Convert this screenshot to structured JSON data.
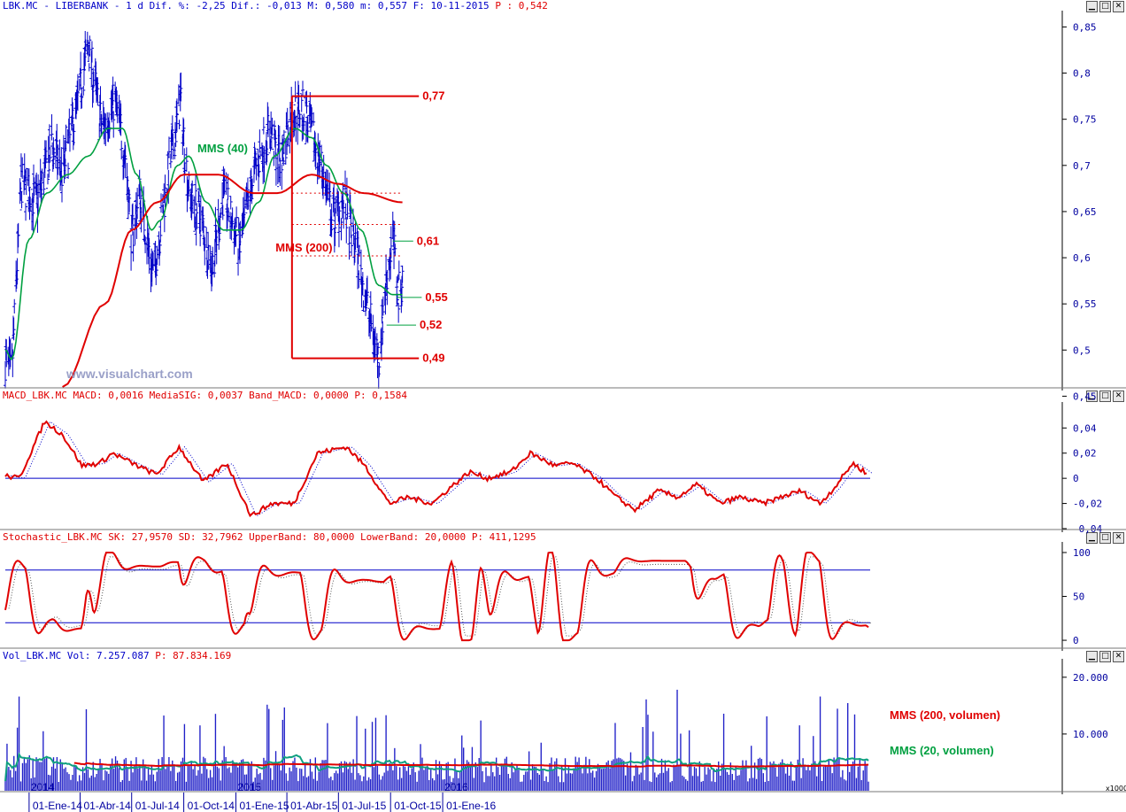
{
  "header": {
    "main": "LBK.MC - LIBERBANK -  1 d Dif. %: -2,25 Dif.: -0,013 M: 0,580 m: 0,557 F: 10-11-2015",
    "main_price": "P : 0,542",
    "macd_label": "MACD_LBK.MC MACD: 0,0016 MediaSIG: 0,0037 Band_MACD: 0,0000",
    "macd_p": "P: 0,1584",
    "stoch_label": "Stochastic_LBK.MC SK: 27,9570 SD: 32,7962 UpperBand: 80,0000 LowerBand: 20,0000",
    "stoch_p": "P: 411,1295",
    "vol_label": "Vol_LBK.MC Vol: 7.257.087",
    "vol_p": "P: 87.834.169"
  },
  "watermark": "www.visualchart.com",
  "window_buttons": [
    "▁",
    "□",
    "✕"
  ],
  "colors": {
    "price": "#0000c8",
    "mms40": "#00a040",
    "mms200": "#e00000",
    "frame": "#0000c8",
    "axis": "#000000"
  },
  "chart_data": [
    {
      "type": "candlestick",
      "title": "",
      "ylim": [
        0.46,
        0.86
      ],
      "yticks": [
        {
          "v": 0.85,
          "t": "0,85"
        },
        {
          "v": 0.8,
          "t": "0,8"
        },
        {
          "v": 0.75,
          "t": "0,75"
        },
        {
          "v": 0.7,
          "t": "0,7"
        },
        {
          "v": 0.65,
          "t": "0,65"
        },
        {
          "v": 0.6,
          "t": "0,6"
        },
        {
          "v": 0.55,
          "t": "0,55"
        },
        {
          "v": 0.5,
          "t": "0,5"
        },
        {
          "v": 0.45,
          "t": "0,45"
        }
      ],
      "close_keypoints": [
        [
          "2013-11-20",
          0.49
        ],
        [
          "2013-12-01",
          0.47
        ],
        [
          "2013-12-18",
          0.68
        ],
        [
          "2014-01-15",
          0.66
        ],
        [
          "2014-02-10",
          0.72
        ],
        [
          "2014-03-01",
          0.69
        ],
        [
          "2014-04-01",
          0.78
        ],
        [
          "2014-04-15",
          0.83
        ],
        [
          "2014-05-10",
          0.74
        ],
        [
          "2014-06-01",
          0.77
        ],
        [
          "2014-06-20",
          0.71
        ],
        [
          "2014-07-01",
          0.62
        ],
        [
          "2014-07-15",
          0.67
        ],
        [
          "2014-08-08",
          0.58
        ],
        [
          "2014-09-01",
          0.68
        ],
        [
          "2014-09-25",
          0.77
        ],
        [
          "2014-10-10",
          0.67
        ],
        [
          "2014-11-01",
          0.64
        ],
        [
          "2014-11-20",
          0.59
        ],
        [
          "2014-12-10",
          0.67
        ],
        [
          "2015-01-08",
          0.61
        ],
        [
          "2015-02-01",
          0.69
        ],
        [
          "2015-03-01",
          0.74
        ],
        [
          "2015-03-20",
          0.7
        ],
        [
          "2015-04-10",
          0.76
        ],
        [
          "2015-05-01",
          0.76
        ],
        [
          "2015-06-01",
          0.7
        ],
        [
          "2015-06-20",
          0.64
        ],
        [
          "2015-07-10",
          0.66
        ],
        [
          "2015-08-01",
          0.61
        ],
        [
          "2015-08-20",
          0.55
        ],
        [
          "2015-09-10",
          0.49
        ],
        [
          "2015-09-24",
          0.58
        ],
        [
          "2015-10-05",
          0.62
        ],
        [
          "2015-10-15",
          0.56
        ],
        [
          "2015-10-22",
          0.58
        ]
      ],
      "mms40_keypoints": [
        [
          "2013-11-20",
          0.5
        ],
        [
          "2013-12-01",
          0.49
        ],
        [
          "2014-01-01",
          0.62
        ],
        [
          "2014-02-01",
          0.67
        ],
        [
          "2014-03-10",
          0.69
        ],
        [
          "2014-04-15",
          0.71
        ],
        [
          "2014-05-20",
          0.74
        ],
        [
          "2014-06-15",
          0.74
        ],
        [
          "2014-07-10",
          0.69
        ],
        [
          "2014-08-05",
          0.63
        ],
        [
          "2014-08-20",
          0.64
        ],
        [
          "2014-09-20",
          0.7
        ],
        [
          "2014-10-10",
          0.71
        ],
        [
          "2014-11-10",
          0.66
        ],
        [
          "2014-12-10",
          0.63
        ],
        [
          "2015-01-10",
          0.63
        ],
        [
          "2015-02-10",
          0.66
        ],
        [
          "2015-03-10",
          0.71
        ],
        [
          "2015-04-15",
          0.74
        ],
        [
          "2015-05-15",
          0.73
        ],
        [
          "2015-06-10",
          0.7
        ],
        [
          "2015-07-10",
          0.67
        ],
        [
          "2015-08-10",
          0.63
        ],
        [
          "2015-09-10",
          0.57
        ],
        [
          "2015-10-05",
          0.56
        ],
        [
          "2015-10-22",
          0.56
        ]
      ],
      "mms200_keypoints": [
        [
          "2014-03-01",
          0.46
        ],
        [
          "2014-05-15",
          0.55
        ],
        [
          "2014-07-01",
          0.63
        ],
        [
          "2014-08-15",
          0.66
        ],
        [
          "2014-10-01",
          0.69
        ],
        [
          "2014-12-01",
          0.69
        ],
        [
          "2015-02-01",
          0.67
        ],
        [
          "2015-03-15",
          0.67
        ],
        [
          "2015-05-15",
          0.69
        ],
        [
          "2015-07-01",
          0.68
        ],
        [
          "2015-08-15",
          0.67
        ],
        [
          "2015-10-22",
          0.66
        ]
      ],
      "annotations": [
        {
          "text": "MMS (40)",
          "date": "2014-10-25",
          "value": 0.714,
          "color": "green"
        },
        {
          "text": "MMS (200)",
          "date": "2015-03-12",
          "value": 0.607,
          "color": "red"
        }
      ],
      "levels": [
        {
          "text": "0,77",
          "value": 0.775,
          "from": "2015-04-10",
          "to": "2015-11-20",
          "style": "solid",
          "color": "red"
        },
        {
          "text": "0,49",
          "value": 0.491,
          "from": "2015-04-10",
          "to": "2015-11-20",
          "style": "solid",
          "color": "red"
        },
        {
          "text": "0,61",
          "value": 0.618,
          "from": "2015-10-05",
          "to": "2015-11-10",
          "style": "solid",
          "color": "green"
        },
        {
          "text": "0,55",
          "value": 0.557,
          "from": "2015-10-12",
          "to": "2015-11-25",
          "style": "solid",
          "color": "green"
        },
        {
          "text": "0,52",
          "value": 0.527,
          "from": "2015-09-24",
          "to": "2015-11-15",
          "style": "solid",
          "color": "green"
        },
        {
          "value": 0.67,
          "from": "2015-04-10",
          "to": "2015-10-22",
          "style": "dotted",
          "color": "red"
        },
        {
          "value": 0.636,
          "from": "2015-04-10",
          "to": "2015-10-22",
          "style": "dotted",
          "color": "red"
        },
        {
          "value": 0.602,
          "from": "2015-04-10",
          "to": "2015-10-22",
          "style": "dotted",
          "color": "red"
        }
      ]
    },
    {
      "type": "line",
      "title": "",
      "ylim": [
        -0.04,
        0.055
      ],
      "yticks": [
        {
          "v": 0.04,
          "t": "0,04"
        },
        {
          "v": 0.02,
          "t": "0,02"
        },
        {
          "v": 0,
          "t": "0"
        },
        {
          "v": -0.02,
          "t": "-0,02"
        },
        {
          "v": -0.04,
          "t": "-0,04"
        }
      ],
      "zero_line": 0,
      "macd_keypoints": [
        [
          "2013-11-20",
          0.002
        ],
        [
          "2013-12-05",
          0.0
        ],
        [
          "2014-01-01",
          0.045
        ],
        [
          "2014-01-20",
          0.035
        ],
        [
          "2014-02-10",
          0.01
        ],
        [
          "2014-03-01",
          0.012
        ],
        [
          "2014-03-15",
          0.02
        ],
        [
          "2014-04-10",
          0.01
        ],
        [
          "2014-05-01",
          0.003
        ],
        [
          "2014-05-25",
          0.025
        ],
        [
          "2014-06-20",
          -0.003
        ],
        [
          "2014-07-15",
          0.012
        ],
        [
          "2014-08-10",
          -0.03
        ],
        [
          "2014-09-01",
          -0.02
        ],
        [
          "2014-09-25",
          -0.02
        ],
        [
          "2014-10-20",
          0.02
        ],
        [
          "2014-11-20",
          0.025
        ],
        [
          "2014-12-10",
          0.01
        ],
        [
          "2015-01-05",
          -0.02
        ],
        [
          "2015-01-25",
          -0.015
        ],
        [
          "2015-02-20",
          -0.02
        ],
        [
          "2015-03-15",
          -0.005
        ],
        [
          "2015-04-01",
          0.005
        ],
        [
          "2015-04-20",
          0.0
        ],
        [
          "2015-05-15",
          0.005
        ],
        [
          "2015-06-05",
          0.02
        ],
        [
          "2015-07-01",
          0.01
        ],
        [
          "2015-07-20",
          0.012
        ],
        [
          "2015-08-15",
          0.0
        ],
        [
          "2015-09-05",
          -0.015
        ],
        [
          "2015-09-25",
          -0.025
        ],
        [
          "2015-10-20",
          -0.01
        ],
        [
          "2015-11-10",
          -0.015
        ],
        [
          "2015-11-30",
          -0.005
        ],
        [
          "2015-12-25",
          -0.02
        ],
        [
          "2016-01-15",
          -0.015
        ],
        [
          "2016-02-10",
          -0.02
        ],
        [
          "2016-02-28",
          -0.015
        ],
        [
          "2016-03-20",
          -0.01
        ],
        [
          "2016-04-10",
          -0.02
        ],
        [
          "2016-04-25",
          -0.008
        ],
        [
          "2016-05-15",
          0.012
        ],
        [
          "2016-05-30",
          0.004
        ]
      ]
    },
    {
      "type": "line",
      "title": "",
      "ylim": [
        -8,
        104
      ],
      "yticks": [
        {
          "v": 100,
          "t": "100"
        },
        {
          "v": 50,
          "t": "50"
        },
        {
          "v": 0,
          "t": "0"
        }
      ],
      "bands": [
        80,
        20
      ]
    },
    {
      "type": "bar",
      "title": "",
      "ylim": [
        0,
        22000
      ],
      "yticks": [
        {
          "v": 20000,
          "t": "20.000"
        },
        {
          "v": 10000,
          "t": "10.000"
        }
      ],
      "unit_note": "x1000",
      "legend": [
        {
          "name": "MMS (200, volumen)",
          "color": "red"
        },
        {
          "name": "MMS (20, volumen)",
          "color": "green"
        }
      ]
    }
  ],
  "x_axis": {
    "ticks": [
      {
        "date": "2014-01-01",
        "t": "01-Ene-14"
      },
      {
        "date": "2014-04-01",
        "t": "01-Abr-14"
      },
      {
        "date": "2014-07-01",
        "t": "01-Jul-14"
      },
      {
        "date": "2014-10-01",
        "t": "01-Oct-14"
      },
      {
        "date": "2015-01-01",
        "t": "01-Ene-15"
      },
      {
        "date": "2015-04-01",
        "t": "01-Abr-15"
      },
      {
        "date": "2015-07-01",
        "t": "01-Jul-15"
      },
      {
        "date": "2015-10-01",
        "t": "01-Oct-15"
      },
      {
        "date": "2016-01-01",
        "t": "01-Ene-16"
      }
    ],
    "year_marks": [
      {
        "date": "2014-01-01",
        "t": "2014"
      },
      {
        "date": "2015-01-01",
        "t": "2015"
      },
      {
        "date": "2016-01-01",
        "t": "2016"
      }
    ]
  }
}
